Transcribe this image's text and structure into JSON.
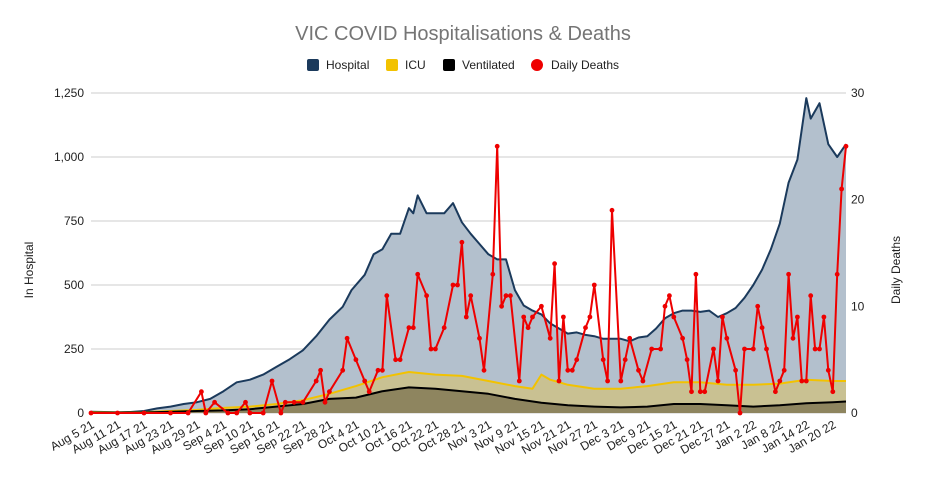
{
  "chart_data": {
    "type": "area",
    "title": "VIC COVID Hospitalisations & Deaths",
    "ylabel": "In Hospital",
    "y2label": "Daily Deaths",
    "ylim": [
      0,
      1250
    ],
    "y2lim": [
      0,
      30
    ],
    "yticks": [
      "0",
      "250",
      "500",
      "750",
      "1,000",
      "1,250"
    ],
    "y2ticks": [
      "0",
      "10",
      "20",
      "30"
    ],
    "grid": true,
    "legend_position": "top",
    "colors": {
      "hospital_line": "#1b3a5c",
      "hospital_fill": "#b3c0cd",
      "icu_line": "#f2c200",
      "icu_fill": "#c9c192",
      "ventilated_line": "#000000",
      "ventilated_fill": "#8e855f",
      "deaths": "#ee0000"
    },
    "legend": [
      {
        "label": "Hospital",
        "color": "#1b3a5c",
        "shape": "square"
      },
      {
        "label": "ICU",
        "color": "#f2c200",
        "shape": "square"
      },
      {
        "label": "Ventilated",
        "color": "#000000",
        "shape": "square"
      },
      {
        "label": "Daily Deaths",
        "color": "#ee0000",
        "shape": "circle"
      }
    ],
    "x_tick_labels": [
      "Aug 5 21",
      "Aug 11 21",
      "Aug 17 21",
      "Aug 23 21",
      "Aug 29 21",
      "Sep 4 21",
      "Sep 10 21",
      "Sep 16 21",
      "Sep 22 21",
      "Sep 28 21",
      "Oct 4 21",
      "Oct 10 21",
      "Oct 16 21",
      "Oct 22 21",
      "Oct 28 21",
      "Nov 3 21",
      "Nov 9 21",
      "Nov 15 21",
      "Nov 21 21",
      "Nov 27 21",
      "Dec 3 21",
      "Dec 9 21",
      "Dec 15 21",
      "Dec 21 21",
      "Dec 27 21",
      "Jan 2 22",
      "Jan 8 22",
      "Jan 14 22",
      "Jan 20 22"
    ],
    "x_start": "Aug 5 21",
    "x_end": "Jan 23 22",
    "series": [
      {
        "name": "Hospital",
        "points": [
          [
            "Aug 5 21",
            5
          ],
          [
            "Aug 11 21",
            3
          ],
          [
            "Aug 14 21",
            4
          ],
          [
            "Aug 17 21",
            8
          ],
          [
            "Aug 20 21",
            18
          ],
          [
            "Aug 23 21",
            25
          ],
          [
            "Aug 26 21",
            35
          ],
          [
            "Aug 29 21",
            42
          ],
          [
            "Sep 1 21",
            55
          ],
          [
            "Sep 4 21",
            85
          ],
          [
            "Sep 7 21",
            120
          ],
          [
            "Sep 10 21",
            130
          ],
          [
            "Sep 13 21",
            150
          ],
          [
            "Sep 16 21",
            180
          ],
          [
            "Sep 19 21",
            210
          ],
          [
            "Sep 22 21",
            245
          ],
          [
            "Sep 25 21",
            300
          ],
          [
            "Sep 28 21",
            365
          ],
          [
            "Oct 1 21",
            415
          ],
          [
            "Oct 3 21",
            480
          ],
          [
            "Oct 6 21",
            540
          ],
          [
            "Oct 8 21",
            620
          ],
          [
            "Oct 10 21",
            640
          ],
          [
            "Oct 12 21",
            700
          ],
          [
            "Oct 14 21",
            700
          ],
          [
            "Oct 16 21",
            800
          ],
          [
            "Oct 17 21",
            780
          ],
          [
            "Oct 18 21",
            850
          ],
          [
            "Oct 20 21",
            780
          ],
          [
            "Oct 22 21",
            780
          ],
          [
            "Oct 24 21",
            780
          ],
          [
            "Oct 26 21",
            820
          ],
          [
            "Oct 28 21",
            745
          ],
          [
            "Oct 30 21",
            700
          ],
          [
            "Nov 1 21",
            660
          ],
          [
            "Nov 3 21",
            620
          ],
          [
            "Nov 5 21",
            600
          ],
          [
            "Nov 7 21",
            600
          ],
          [
            "Nov 9 21",
            480
          ],
          [
            "Nov 11 21",
            420
          ],
          [
            "Nov 13 21",
            400
          ],
          [
            "Nov 15 21",
            385
          ],
          [
            "Nov 17 21",
            350
          ],
          [
            "Nov 19 21",
            330
          ],
          [
            "Nov 21 21",
            310
          ],
          [
            "Nov 23 21",
            315
          ],
          [
            "Nov 25 21",
            305
          ],
          [
            "Nov 27 21",
            300
          ],
          [
            "Nov 29 21",
            290
          ],
          [
            "Dec 1 21",
            290
          ],
          [
            "Dec 3 21",
            290
          ],
          [
            "Dec 5 21",
            280
          ],
          [
            "Dec 7 21",
            295
          ],
          [
            "Dec 9 21",
            300
          ],
          [
            "Dec 11 21",
            330
          ],
          [
            "Dec 13 21",
            370
          ],
          [
            "Dec 15 21",
            390
          ],
          [
            "Dec 17 21",
            400
          ],
          [
            "Dec 19 21",
            400
          ],
          [
            "Dec 21 21",
            395
          ],
          [
            "Dec 23 21",
            400
          ],
          [
            "Dec 25 21",
            375
          ],
          [
            "Dec 27 21",
            390
          ],
          [
            "Dec 29 21",
            410
          ],
          [
            "Dec 31 21",
            450
          ],
          [
            "Jan 2 22",
            500
          ],
          [
            "Jan 4 22",
            560
          ],
          [
            "Jan 6 22",
            640
          ],
          [
            "Jan 8 22",
            740
          ],
          [
            "Jan 10 22",
            900
          ],
          [
            "Jan 12 22",
            990
          ],
          [
            "Jan 14 22",
            1230
          ],
          [
            "Jan 15 22",
            1150
          ],
          [
            "Jan 17 22",
            1210
          ],
          [
            "Jan 19 22",
            1050
          ],
          [
            "Jan 21 22",
            1000
          ],
          [
            "Jan 23 22",
            1050
          ]
        ]
      },
      {
        "name": "ICU",
        "points": [
          [
            "Aug 5 21",
            3
          ],
          [
            "Aug 11 21",
            2
          ],
          [
            "Aug 17 21",
            3
          ],
          [
            "Aug 23 21",
            8
          ],
          [
            "Aug 29 21",
            12
          ],
          [
            "Sep 4 21",
            20
          ],
          [
            "Sep 10 21",
            25
          ],
          [
            "Sep 16 21",
            35
          ],
          [
            "Sep 22 21",
            50
          ],
          [
            "Sep 28 21",
            75
          ],
          [
            "Oct 4 21",
            105
          ],
          [
            "Oct 10 21",
            140
          ],
          [
            "Oct 16 21",
            160
          ],
          [
            "Oct 22 21",
            150
          ],
          [
            "Oct 28 21",
            145
          ],
          [
            "Nov 3 21",
            125
          ],
          [
            "Nov 9 21",
            105
          ],
          [
            "Nov 13 21",
            95
          ],
          [
            "Nov 15 21",
            150
          ],
          [
            "Nov 17 21",
            130
          ],
          [
            "Nov 21 21",
            110
          ],
          [
            "Nov 27 21",
            95
          ],
          [
            "Dec 3 21",
            95
          ],
          [
            "Dec 9 21",
            105
          ],
          [
            "Dec 15 21",
            120
          ],
          [
            "Dec 21 21",
            120
          ],
          [
            "Dec 27 21",
            110
          ],
          [
            "Jan 2 22",
            110
          ],
          [
            "Jan 8 22",
            115
          ],
          [
            "Jan 14 22",
            130
          ],
          [
            "Jan 20 22",
            125
          ],
          [
            "Jan 23 22",
            125
          ]
        ]
      },
      {
        "name": "Ventilated",
        "points": [
          [
            "Aug 5 21",
            1
          ],
          [
            "Aug 11 21",
            1
          ],
          [
            "Aug 17 21",
            2
          ],
          [
            "Aug 23 21",
            5
          ],
          [
            "Aug 29 21",
            8
          ],
          [
            "Sep 4 21",
            10
          ],
          [
            "Sep 10 21",
            15
          ],
          [
            "Sep 16 21",
            25
          ],
          [
            "Sep 22 21",
            35
          ],
          [
            "Sep 28 21",
            55
          ],
          [
            "Oct 4 21",
            60
          ],
          [
            "Oct 10 21",
            85
          ],
          [
            "Oct 16 21",
            100
          ],
          [
            "Oct 22 21",
            95
          ],
          [
            "Oct 28 21",
            85
          ],
          [
            "Nov 3 21",
            75
          ],
          [
            "Nov 9 21",
            55
          ],
          [
            "Nov 15 21",
            40
          ],
          [
            "Nov 21 21",
            30
          ],
          [
            "Nov 27 21",
            25
          ],
          [
            "Dec 3 21",
            22
          ],
          [
            "Dec 9 21",
            25
          ],
          [
            "Dec 15 21",
            35
          ],
          [
            "Dec 21 21",
            35
          ],
          [
            "Dec 27 21",
            30
          ],
          [
            "Jan 2 22",
            25
          ],
          [
            "Jan 8 22",
            30
          ],
          [
            "Jan 14 22",
            38
          ],
          [
            "Jan 20 22",
            42
          ],
          [
            "Jan 23 22",
            45
          ]
        ]
      },
      {
        "name": "Daily Deaths",
        "points": [
          [
            "Aug 5 21",
            0
          ],
          [
            "Aug 11 21",
            0
          ],
          [
            "Aug 17 21",
            0
          ],
          [
            "Aug 23 21",
            0
          ],
          [
            "Aug 27 21",
            0
          ],
          [
            "Aug 30 21",
            2
          ],
          [
            "Aug 31 21",
            0
          ],
          [
            "Sep 2 21",
            1
          ],
          [
            "Sep 5 21",
            0
          ],
          [
            "Sep 7 21",
            0
          ],
          [
            "Sep 9 21",
            1
          ],
          [
            "Sep 10 21",
            0
          ],
          [
            "Sep 13 21",
            0
          ],
          [
            "Sep 15 21",
            3
          ],
          [
            "Sep 17 21",
            0
          ],
          [
            "Sep 18 21",
            1
          ],
          [
            "Sep 20 21",
            1
          ],
          [
            "Sep 22 21",
            1
          ],
          [
            "Sep 25 21",
            3
          ],
          [
            "Sep 26 21",
            4
          ],
          [
            "Sep 27 21",
            1
          ],
          [
            "Sep 28 21",
            2
          ],
          [
            "Oct 1 21",
            4
          ],
          [
            "Oct 2 21",
            7
          ],
          [
            "Oct 4 21",
            5
          ],
          [
            "Oct 6 21",
            3
          ],
          [
            "Oct 7 21",
            2
          ],
          [
            "Oct 9 21",
            4
          ],
          [
            "Oct 10 21",
            4
          ],
          [
            "Oct 11 21",
            11
          ],
          [
            "Oct 13 21",
            5
          ],
          [
            "Oct 14 21",
            5
          ],
          [
            "Oct 16 21",
            8
          ],
          [
            "Oct 17 21",
            8
          ],
          [
            "Oct 18 21",
            13
          ],
          [
            "Oct 20 21",
            11
          ],
          [
            "Oct 21 21",
            6
          ],
          [
            "Oct 22 21",
            6
          ],
          [
            "Oct 24 21",
            8
          ],
          [
            "Oct 26 21",
            12
          ],
          [
            "Oct 27 21",
            12
          ],
          [
            "Oct 28 21",
            16
          ],
          [
            "Oct 29 21",
            9
          ],
          [
            "Oct 30 21",
            11
          ],
          [
            "Nov 1 21",
            7
          ],
          [
            "Nov 2 21",
            4
          ],
          [
            "Nov 4 21",
            13
          ],
          [
            "Nov 5 21",
            25
          ],
          [
            "Nov 6 21",
            10
          ],
          [
            "Nov 7 21",
            11
          ],
          [
            "Nov 8 21",
            11
          ],
          [
            "Nov 10 21",
            3
          ],
          [
            "Nov 11 21",
            9
          ],
          [
            "Nov 12 21",
            8
          ],
          [
            "Nov 13 21",
            9
          ],
          [
            "Nov 15 21",
            10
          ],
          [
            "Nov 17 21",
            7
          ],
          [
            "Nov 18 21",
            14
          ],
          [
            "Nov 19 21",
            3
          ],
          [
            "Nov 20 21",
            9
          ],
          [
            "Nov 21 21",
            4
          ],
          [
            "Nov 22 21",
            4
          ],
          [
            "Nov 23 21",
            5
          ],
          [
            "Nov 25 21",
            8
          ],
          [
            "Nov 26 21",
            9
          ],
          [
            "Nov 27 21",
            12
          ],
          [
            "Nov 29 21",
            5
          ],
          [
            "Nov 30 21",
            3
          ],
          [
            "Dec 1 21",
            19
          ],
          [
            "Dec 3 21",
            3
          ],
          [
            "Dec 4 21",
            5
          ],
          [
            "Dec 5 21",
            7
          ],
          [
            "Dec 7 21",
            4
          ],
          [
            "Dec 8 21",
            3
          ],
          [
            "Dec 10 21",
            6
          ],
          [
            "Dec 12 21",
            6
          ],
          [
            "Dec 13 21",
            10
          ],
          [
            "Dec 14 21",
            11
          ],
          [
            "Dec 15 21",
            9
          ],
          [
            "Dec 17 21",
            7
          ],
          [
            "Dec 18 21",
            5
          ],
          [
            "Dec 19 21",
            2
          ],
          [
            "Dec 20 21",
            13
          ],
          [
            "Dec 21 21",
            2
          ],
          [
            "Dec 22 21",
            2
          ],
          [
            "Dec 24 21",
            6
          ],
          [
            "Dec 25 21",
            3
          ],
          [
            "Dec 26 21",
            9
          ],
          [
            "Dec 27 21",
            7
          ],
          [
            "Dec 29 21",
            4
          ],
          [
            "Dec 30 21",
            0
          ],
          [
            "Dec 31 21",
            6
          ],
          [
            "Jan 2 22",
            6
          ],
          [
            "Jan 3 22",
            10
          ],
          [
            "Jan 4 22",
            8
          ],
          [
            "Jan 5 22",
            6
          ],
          [
            "Jan 7 22",
            2
          ],
          [
            "Jan 8 22",
            3
          ],
          [
            "Jan 9 22",
            4
          ],
          [
            "Jan 10 22",
            13
          ],
          [
            "Jan 11 22",
            7
          ],
          [
            "Jan 12 22",
            9
          ],
          [
            "Jan 13 22",
            3
          ],
          [
            "Jan 14 22",
            3
          ],
          [
            "Jan 15 22",
            11
          ],
          [
            "Jan 16 22",
            6
          ],
          [
            "Jan 17 22",
            6
          ],
          [
            "Jan 18 22",
            9
          ],
          [
            "Jan 19 22",
            4
          ],
          [
            "Jan 20 22",
            2
          ],
          [
            "Jan 21 22",
            13
          ],
          [
            "Jan 22 22",
            21
          ],
          [
            "Jan 23 22",
            25
          ]
        ]
      }
    ]
  }
}
